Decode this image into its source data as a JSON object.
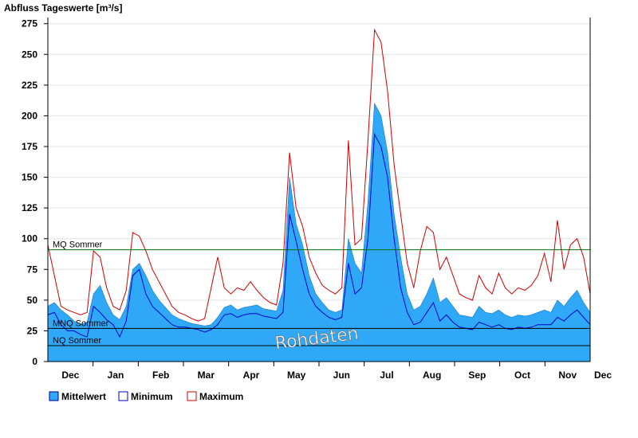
{
  "chart_data": {
    "type": "area",
    "title": "Abfluss Tageswerte [m³/s]",
    "xlabel": "",
    "ylabel": "",
    "ylim": [
      0,
      280
    ],
    "yticks": [
      0,
      25,
      50,
      75,
      100,
      125,
      150,
      175,
      200,
      225,
      250,
      275
    ],
    "x_ticks": [
      "Dec",
      "Jan",
      "Feb",
      "Mar",
      "Apr",
      "May",
      "Jun",
      "Jul",
      "Aug",
      "Sep",
      "Oct",
      "Nov",
      "Dec"
    ],
    "grid": true,
    "legend_position": "bottom-left",
    "reference_lines": [
      {
        "label": "MQ Sommer",
        "value": 91,
        "color": "#007000"
      },
      {
        "label": "MNQ Sommer",
        "value": 27,
        "color": "#000000"
      },
      {
        "label": "NQ Sommer",
        "value": 13,
        "color": "#000000"
      }
    ],
    "annotation": "Rohdaten",
    "colors": {
      "mittelwert_fill": "#30a8f8",
      "minimum": "#0000c8",
      "maximum": "#d00000"
    },
    "series": [
      {
        "name": "Mittelwert",
        "values": [
          45,
          48,
          42,
          38,
          33,
          30,
          32,
          55,
          62,
          48,
          38,
          34,
          45,
          75,
          80,
          70,
          58,
          50,
          44,
          38,
          35,
          33,
          31,
          30,
          29,
          30,
          36,
          44,
          46,
          42,
          44,
          45,
          46,
          43,
          42,
          41,
          58,
          150,
          112,
          95,
          70,
          55,
          48,
          42,
          40,
          42,
          100,
          80,
          72,
          130,
          210,
          200,
          170,
          120,
          85,
          55,
          42,
          45,
          55,
          68,
          48,
          52,
          45,
          38,
          37,
          36,
          45,
          40,
          39,
          42,
          38,
          36,
          38,
          37,
          38,
          40,
          42,
          40,
          50,
          45,
          52,
          58,
          48,
          40
        ]
      },
      {
        "name": "Minimum",
        "values": [
          38,
          40,
          30,
          25,
          25,
          22,
          20,
          45,
          40,
          34,
          30,
          20,
          33,
          70,
          75,
          55,
          45,
          40,
          35,
          30,
          28,
          28,
          27,
          26,
          24,
          26,
          30,
          38,
          39,
          36,
          38,
          39,
          39,
          37,
          36,
          35,
          40,
          120,
          98,
          75,
          55,
          45,
          40,
          36,
          34,
          36,
          80,
          55,
          60,
          100,
          185,
          175,
          150,
          100,
          60,
          40,
          30,
          32,
          40,
          48,
          33,
          38,
          32,
          28,
          27,
          26,
          32,
          30,
          28,
          30,
          27,
          26,
          28,
          27,
          28,
          30,
          30,
          30,
          36,
          33,
          38,
          42,
          36,
          30
        ]
      },
      {
        "name": "Maximum",
        "values": [
          95,
          70,
          45,
          42,
          40,
          38,
          40,
          90,
          85,
          60,
          45,
          42,
          58,
          105,
          102,
          90,
          75,
          65,
          55,
          45,
          40,
          38,
          35,
          33,
          35,
          60,
          85,
          60,
          55,
          60,
          58,
          65,
          58,
          52,
          48,
          46,
          80,
          170,
          125,
          110,
          85,
          72,
          62,
          58,
          55,
          60,
          180,
          95,
          100,
          180,
          270,
          260,
          220,
          160,
          120,
          80,
          60,
          90,
          110,
          105,
          75,
          85,
          70,
          55,
          52,
          50,
          70,
          60,
          55,
          72,
          60,
          55,
          60,
          58,
          62,
          70,
          88,
          65,
          115,
          75,
          95,
          100,
          85,
          55
        ]
      }
    ]
  },
  "legend": [
    {
      "label": "Mittelwert",
      "fill": "#30a8f8",
      "stroke": "#000080"
    },
    {
      "label": "Minimum",
      "fill": "#ffffff",
      "stroke": "#0000c8"
    },
    {
      "label": "Maximum",
      "fill": "#ffffff",
      "stroke": "#d00000"
    }
  ]
}
